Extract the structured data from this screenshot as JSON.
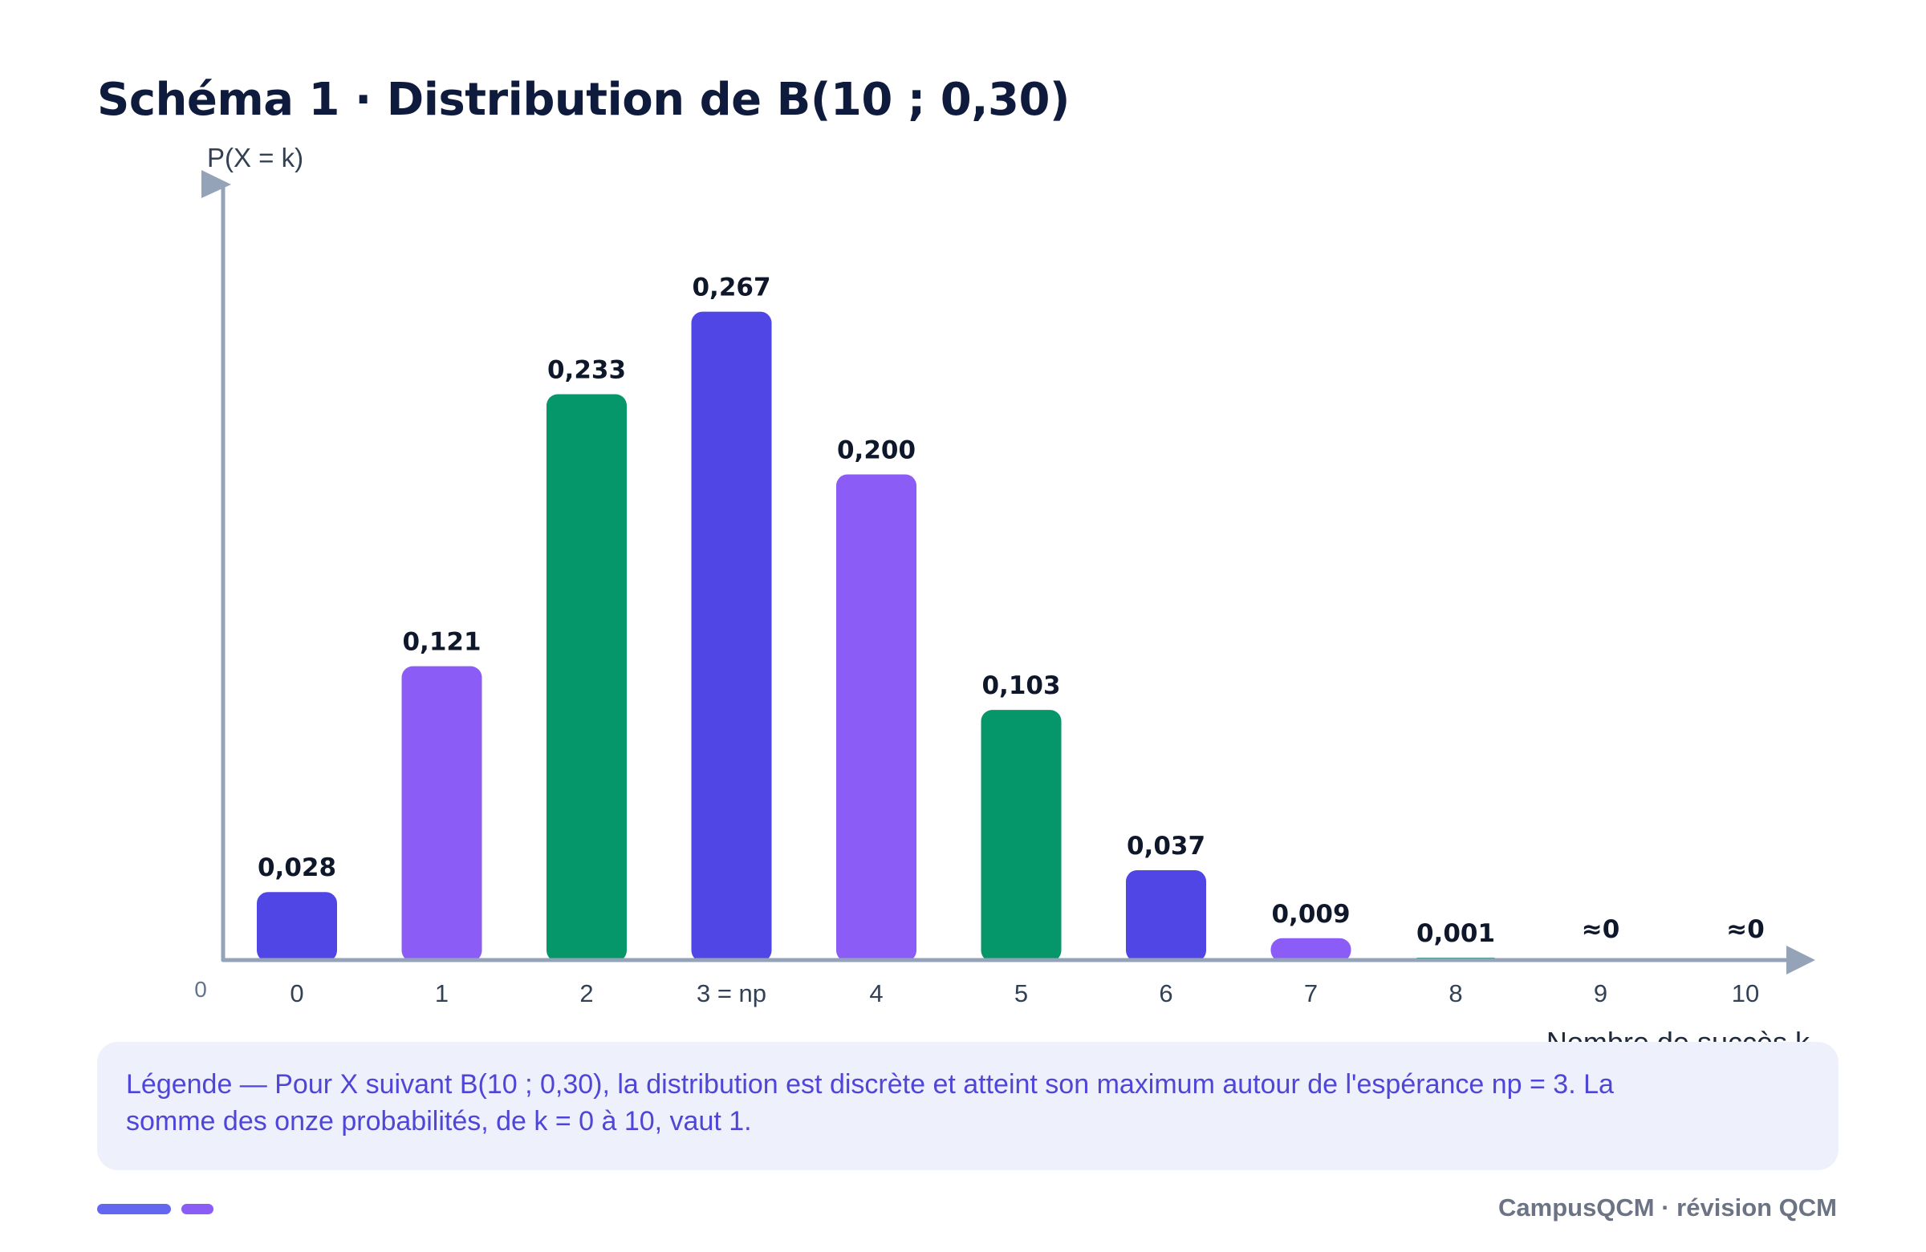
{
  "title": "Schéma 1 · Distribution de B(10 ; 0,30)",
  "chart_data": {
    "type": "bar",
    "title": "Schéma 1 · Distribution de B(10 ; 0,30)",
    "ylabel": "P(X = k)",
    "xlabel": "Nombre de succès k",
    "origin_label": "0",
    "ylim": [
      0,
      0.3
    ],
    "categories": [
      "0",
      "1",
      "2",
      "3 = np",
      "4",
      "5",
      "6",
      "7",
      "8",
      "9",
      "10"
    ],
    "values": [
      0.028,
      0.121,
      0.233,
      0.267,
      0.2,
      0.103,
      0.037,
      0.009,
      0.001,
      0,
      0
    ],
    "value_labels": [
      "0,028",
      "0,121",
      "0,233",
      "0,267",
      "0,200",
      "0,103",
      "0,037",
      "0,009",
      "0,001",
      "≈0",
      "≈0"
    ],
    "bar_colors": [
      "#4f46e5",
      "#8b5cf6",
      "#059669",
      "#4f46e5",
      "#8b5cf6",
      "#059669",
      "#4f46e5",
      "#8b5cf6",
      "#059669",
      "#4f46e5",
      "#8b5cf6"
    ],
    "axis_color": "#94a3b8"
  },
  "legend": {
    "text": "Légende — Pour X suivant B(10 ; 0,30), la distribution est discrète et atteint son maximum autour de l'espérance np = 3. La somme des onze probabilités, de k = 0 à 10, vaut 1."
  },
  "footer": {
    "brand": "CampusQCM · révision QCM",
    "accent_colors": [
      "#6366f1",
      "#8b5cf6"
    ]
  }
}
